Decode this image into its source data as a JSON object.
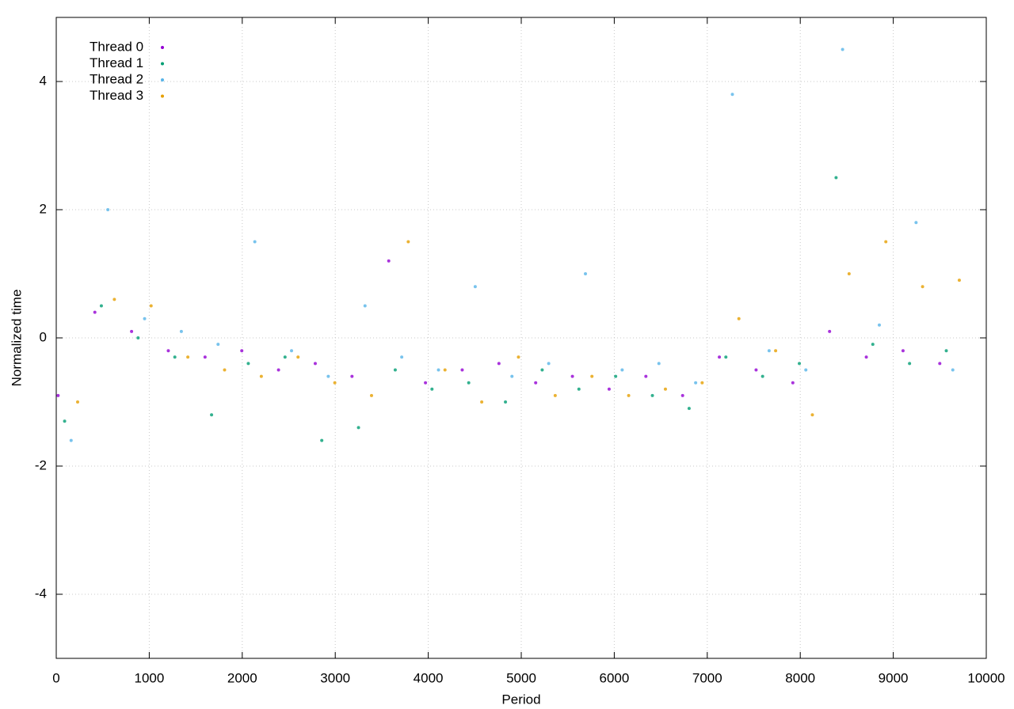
{
  "chart_data": {
    "type": "scatter",
    "xlabel": "Period",
    "ylabel": "Normalized time",
    "xlim": [
      0,
      10000
    ],
    "ylim": [
      -5,
      5
    ],
    "xticks": [
      0,
      1000,
      2000,
      3000,
      4000,
      5000,
      6000,
      7000,
      8000,
      9000,
      10000
    ],
    "yticks": [
      -4,
      -2,
      0,
      2,
      4
    ],
    "grid": true,
    "legend": "top-left",
    "series": [
      {
        "name": "Thread 0",
        "color": "#9400d3",
        "x": [
          20,
          415,
          810,
          1205,
          1600,
          1995,
          2390,
          2785,
          3180,
          3575,
          3970,
          4365,
          4760,
          5155,
          5550,
          5945,
          6340,
          6735,
          7130,
          7525,
          7920,
          8315,
          8710,
          9105,
          9500
        ],
        "values": [
          -0.9,
          0.4,
          0.1,
          -0.2,
          -0.3,
          -0.2,
          -0.5,
          -0.4,
          -0.6,
          1.2,
          -0.7,
          -0.5,
          -0.4,
          -0.7,
          -0.6,
          -0.8,
          -0.6,
          -0.9,
          -0.3,
          -0.5,
          -0.7,
          0.1,
          -0.3,
          -0.2,
          -0.4
        ]
      },
      {
        "name": "Thread 1",
        "color": "#009e73",
        "x": [
          90,
          485,
          880,
          1275,
          1670,
          2065,
          2460,
          2855,
          3250,
          3645,
          4040,
          4435,
          4830,
          5225,
          5620,
          6015,
          6410,
          6805,
          7200,
          7595,
          7990,
          8385,
          8780,
          9175,
          9570
        ],
        "values": [
          -1.3,
          0.5,
          0.0,
          -0.3,
          -1.2,
          -0.4,
          -0.3,
          -1.6,
          -1.4,
          -0.5,
          -0.8,
          -0.7,
          -1.0,
          -0.5,
          -0.8,
          -0.6,
          -0.9,
          -1.1,
          -0.3,
          -0.6,
          -0.4,
          2.5,
          -0.1,
          -0.4,
          -0.2
        ]
      },
      {
        "name": "Thread 2",
        "color": "#56b4e9",
        "x": [
          160,
          555,
          950,
          1345,
          1740,
          2135,
          2530,
          2925,
          3320,
          3715,
          4110,
          4505,
          4900,
          5295,
          5690,
          6085,
          6480,
          6875,
          7270,
          7665,
          8060,
          8455,
          8850,
          9245,
          9640
        ],
        "values": [
          -1.6,
          2.0,
          0.3,
          0.1,
          -0.1,
          1.5,
          -0.2,
          -0.6,
          0.5,
          -0.3,
          -0.5,
          0.8,
          -0.6,
          -0.4,
          1.0,
          -0.5,
          -0.4,
          -0.7,
          3.8,
          -0.2,
          -0.5,
          4.5,
          0.2,
          1.8,
          -0.5
        ]
      },
      {
        "name": "Thread 3",
        "color": "#e69f00",
        "x": [
          230,
          625,
          1020,
          1415,
          1810,
          2205,
          2600,
          2995,
          3390,
          3785,
          4180,
          4575,
          4970,
          5365,
          5760,
          6155,
          6550,
          6945,
          7340,
          7735,
          8130,
          8525,
          8920,
          9315,
          9710
        ],
        "values": [
          -1.0,
          0.6,
          0.5,
          -0.3,
          -0.5,
          -0.6,
          -0.3,
          -0.7,
          -0.9,
          1.5,
          -0.5,
          -1.0,
          -0.3,
          -0.9,
          -0.6,
          -0.9,
          -0.8,
          -0.7,
          0.3,
          -0.2,
          -1.2,
          1.0,
          1.5,
          0.8,
          0.9
        ]
      }
    ]
  }
}
